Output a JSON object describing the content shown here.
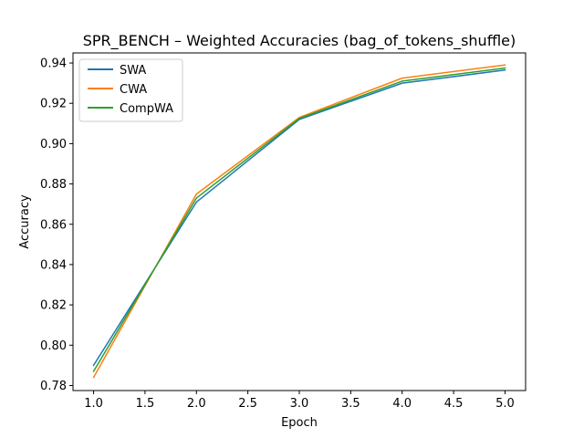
{
  "chart_data": {
    "type": "line",
    "title": "SPR_BENCH – Weighted Accuracies (bag_of_tokens_shuffle)",
    "xlabel": "Epoch",
    "ylabel": "Accuracy",
    "x": [
      1,
      2,
      3,
      4,
      5
    ],
    "xlim": [
      0.8,
      5.2
    ],
    "ylim": [
      0.7775,
      0.945
    ],
    "xticks": [
      1.0,
      1.5,
      2.0,
      2.5,
      3.0,
      3.5,
      4.0,
      4.5,
      5.0
    ],
    "xtick_labels": [
      "1.0",
      "1.5",
      "2.0",
      "2.5",
      "3.0",
      "3.5",
      "4.0",
      "4.5",
      "5.0"
    ],
    "yticks": [
      0.78,
      0.8,
      0.82,
      0.84,
      0.86,
      0.88,
      0.9,
      0.92,
      0.94
    ],
    "ytick_labels": [
      "0.78",
      "0.80",
      "0.82",
      "0.84",
      "0.86",
      "0.88",
      "0.90",
      "0.92",
      "0.94"
    ],
    "grid": false,
    "legend_position": "top-left",
    "series": [
      {
        "name": "SWA",
        "color": "#1f77b4",
        "values": [
          0.79,
          0.871,
          0.912,
          0.93,
          0.9365
        ]
      },
      {
        "name": "CWA",
        "color": "#ff7f0e",
        "values": [
          0.784,
          0.875,
          0.913,
          0.9325,
          0.939
        ]
      },
      {
        "name": "CompWA",
        "color": "#2ca02c",
        "values": [
          0.787,
          0.873,
          0.9125,
          0.931,
          0.9375
        ]
      }
    ]
  }
}
